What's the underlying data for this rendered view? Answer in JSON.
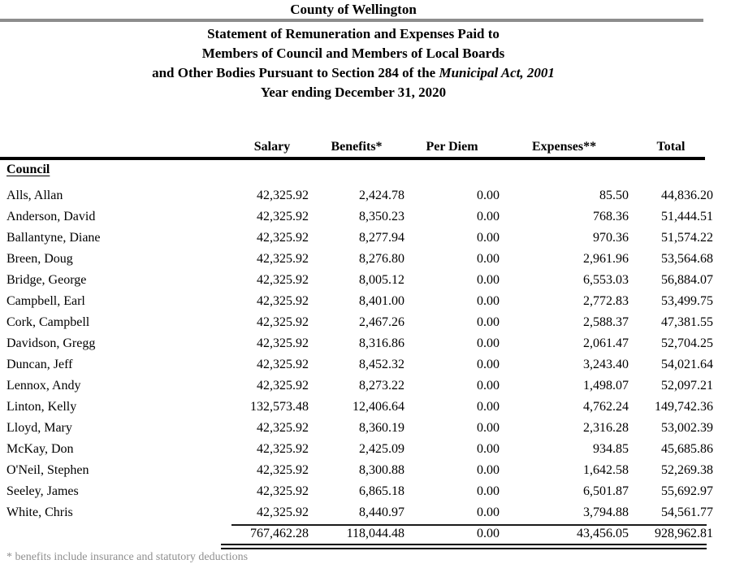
{
  "header": {
    "title": "County of Wellington",
    "line1": "Statement of Remuneration and Expenses Paid to",
    "line2": "Members of Council and Members of Local Boards",
    "line3_prefix": "and Other Bodies Pursuant to Section 284 of the ",
    "line3_italic": "Municipal Act, 2001",
    "line4": "Year ending December 31, 2020"
  },
  "table": {
    "section_label": "Council",
    "columns": [
      "Salary",
      "Benefits*",
      "Per Diem",
      "Expenses**",
      "Total"
    ],
    "rows": [
      {
        "name": "Alls, Allan",
        "values": [
          "42,325.92",
          "2,424.78",
          "0.00",
          "85.50",
          "44,836.20"
        ]
      },
      {
        "name": "Anderson, David",
        "values": [
          "42,325.92",
          "8,350.23",
          "0.00",
          "768.36",
          "51,444.51"
        ]
      },
      {
        "name": "Ballantyne, Diane",
        "values": [
          "42,325.92",
          "8,277.94",
          "0.00",
          "970.36",
          "51,574.22"
        ]
      },
      {
        "name": "Breen, Doug",
        "values": [
          "42,325.92",
          "8,276.80",
          "0.00",
          "2,961.96",
          "53,564.68"
        ]
      },
      {
        "name": "Bridge, George",
        "values": [
          "42,325.92",
          "8,005.12",
          "0.00",
          "6,553.03",
          "56,884.07"
        ]
      },
      {
        "name": "Campbell, Earl",
        "values": [
          "42,325.92",
          "8,401.00",
          "0.00",
          "2,772.83",
          "53,499.75"
        ]
      },
      {
        "name": "Cork, Campbell",
        "values": [
          "42,325.92",
          "2,467.26",
          "0.00",
          "2,588.37",
          "47,381.55"
        ]
      },
      {
        "name": "Davidson, Gregg",
        "values": [
          "42,325.92",
          "8,316.86",
          "0.00",
          "2,061.47",
          "52,704.25"
        ]
      },
      {
        "name": "Duncan, Jeff",
        "values": [
          "42,325.92",
          "8,452.32",
          "0.00",
          "3,243.40",
          "54,021.64"
        ]
      },
      {
        "name": "Lennox, Andy",
        "values": [
          "42,325.92",
          "8,273.22",
          "0.00",
          "1,498.07",
          "52,097.21"
        ]
      },
      {
        "name": "Linton, Kelly",
        "values": [
          "132,573.48",
          "12,406.64",
          "0.00",
          "4,762.24",
          "149,742.36"
        ]
      },
      {
        "name": "Lloyd, Mary",
        "values": [
          "42,325.92",
          "8,360.19",
          "0.00",
          "2,316.28",
          "53,002.39"
        ]
      },
      {
        "name": "McKay, Don",
        "values": [
          "42,325.92",
          "2,425.09",
          "0.00",
          "934.85",
          "45,685.86"
        ]
      },
      {
        "name": "O'Neil, Stephen",
        "values": [
          "42,325.92",
          "8,300.88",
          "0.00",
          "1,642.58",
          "52,269.38"
        ]
      },
      {
        "name": "Seeley, James",
        "values": [
          "42,325.92",
          "6,865.18",
          "0.00",
          "6,501.87",
          "55,692.97"
        ]
      },
      {
        "name": "White, Chris",
        "values": [
          "42,325.92",
          "8,440.97",
          "0.00",
          "3,794.88",
          "54,561.77"
        ]
      }
    ],
    "totals": [
      "767,462.28",
      "118,044.48",
      "0.00",
      "43,456.05",
      "928,962.81"
    ]
  },
  "footnote_partial": "* benefits include insurance and statutory deductions"
}
